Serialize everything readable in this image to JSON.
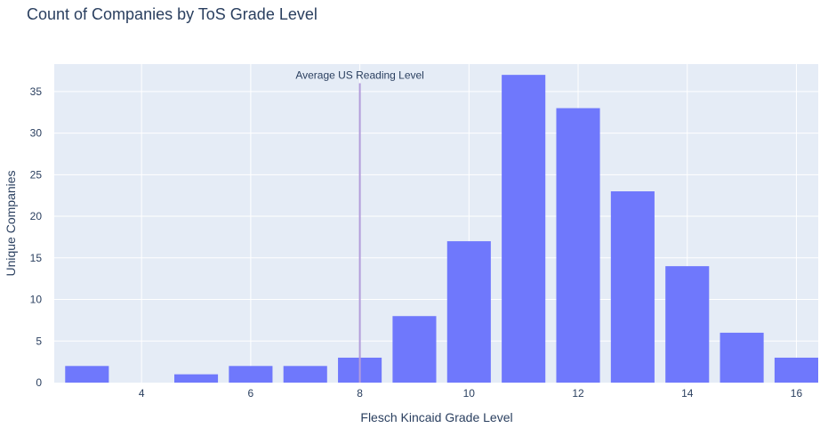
{
  "chart_data": {
    "type": "bar",
    "title": "Count of Companies by ToS Grade Level",
    "xlabel": "Flesch Kincaid Grade Level",
    "ylabel": "Unique Companies",
    "x": [
      3,
      5,
      6,
      7,
      8,
      9,
      10,
      11,
      12,
      13,
      14,
      15,
      16
    ],
    "values": [
      2,
      1,
      2,
      2,
      3,
      8,
      17,
      37,
      33,
      23,
      14,
      6,
      3
    ],
    "xlim": [
      2.4,
      16.4
    ],
    "ylim": [
      0,
      38.3
    ],
    "xticks": [
      "4",
      "6",
      "8",
      "10",
      "12",
      "14",
      "16"
    ],
    "yticks": [
      "0",
      "5",
      "10",
      "15",
      "20",
      "25",
      "30",
      "35"
    ],
    "grid": true,
    "bar_color": "#6f78fc",
    "plot_bg": "#e5ecf6",
    "annotation": {
      "text": "Average US Reading Level",
      "x": 8,
      "line_color": "#b39ddb"
    }
  }
}
